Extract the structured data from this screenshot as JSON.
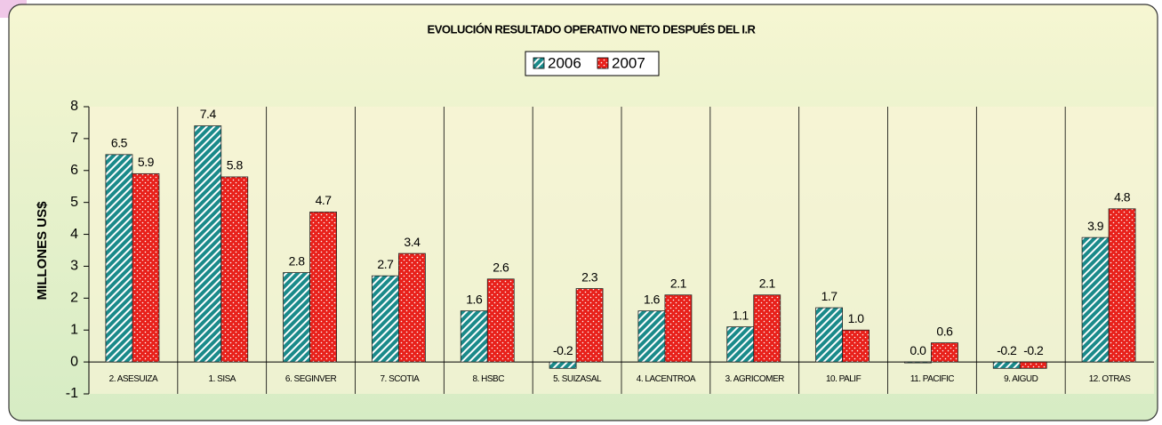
{
  "chart_data": {
    "type": "bar",
    "title": "EVOLUCIÓN RESULTADO OPERATIVO NETO DESPUÉS DEL I.R",
    "y_label": "MILLONES US$",
    "categories": [
      "2. ASESUIZA",
      "1. SISA",
      "6. SEGINVER",
      "7. SCOTIA",
      "8. HSBC",
      "5. SUIZASAL",
      "4. LACENTROA",
      "3. AGRICOMER",
      "10. PALIF",
      "11. PACIFIC",
      "9. AIGUD",
      "12. OTRAS"
    ],
    "series": [
      {
        "name": "2006",
        "color": "#1a8a8a",
        "values": [
          6.5,
          7.4,
          2.8,
          2.7,
          1.6,
          -0.2,
          1.6,
          1.1,
          1.7,
          0,
          -0.2,
          3.9
        ],
        "value_labels": [
          "6.5",
          "7.4",
          "2.8",
          "2.7",
          "1.6",
          "-0.2",
          "1.6",
          "1.1",
          "1.7",
          "0.0",
          "-0.2",
          "3.9"
        ]
      },
      {
        "name": "2007",
        "color": "#e8201a",
        "values": [
          5.9,
          5.8,
          4.7,
          3.4,
          2.6,
          2.3,
          2.1,
          2.1,
          1,
          0.6,
          -0.2,
          4.8
        ],
        "value_labels": [
          "5.9",
          "5.8",
          "4.7",
          "3.4",
          "2.6",
          "2.3",
          "2.1",
          "2.1",
          "1.0",
          "0.6",
          "-0.2",
          "4.8"
        ]
      }
    ],
    "ylim": [
      -1,
      8
    ],
    "yticks": [
      -1,
      0,
      1,
      2,
      3,
      4,
      5,
      6,
      7,
      8
    ],
    "legend": "top"
  }
}
